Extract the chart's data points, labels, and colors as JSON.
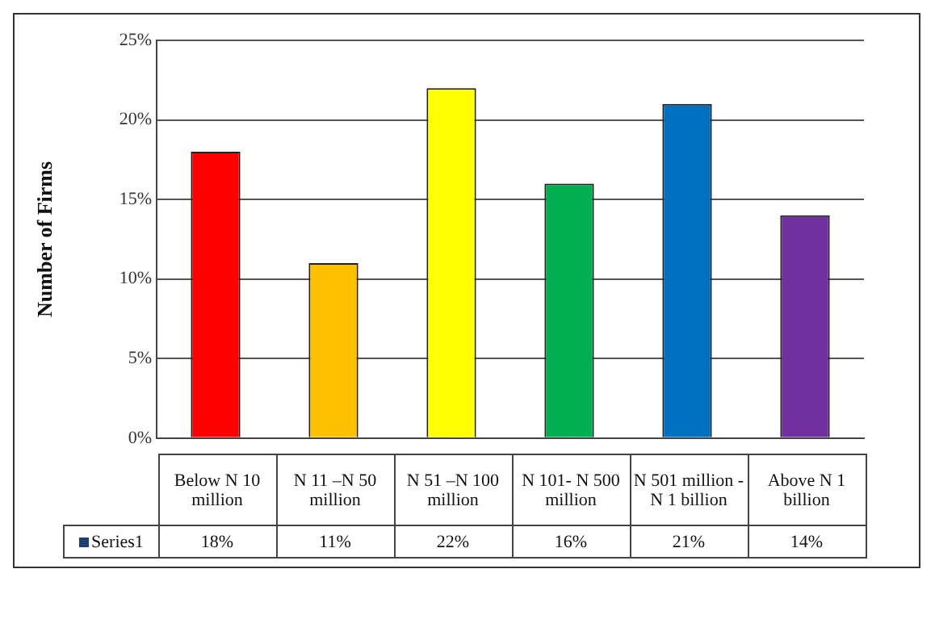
{
  "chart_data": {
    "type": "bar",
    "ylabel": "Number of Firms",
    "categories": [
      "Below N 10 million",
      "N 11 –N 50 million",
      "N 51 –N 100 million",
      "N 101- N 500 million",
      "N 501 million - N 1 billion",
      "Above N 1 billion"
    ],
    "series": [
      {
        "name": "Series1",
        "color": "#1f3f6e",
        "colors": [
          "#ff0000",
          "#ffc000",
          "#ffff00",
          "#00b050",
          "#0070c0",
          "#7030a0"
        ],
        "values": [
          18,
          11,
          22,
          16,
          21,
          14
        ],
        "value_labels": [
          "18%",
          "11%",
          "22%",
          "16%",
          "21%",
          "14%"
        ]
      }
    ],
    "ylim": [
      0,
      25
    ],
    "yticks": [
      {
        "value": 0,
        "label": "0%"
      },
      {
        "value": 5,
        "label": "5%"
      },
      {
        "value": 10,
        "label": "10%"
      },
      {
        "value": 15,
        "label": "15%"
      },
      {
        "value": 20,
        "label": "20%"
      },
      {
        "value": 25,
        "label": "25%"
      }
    ],
    "grid": "y",
    "legend": "bottom"
  }
}
